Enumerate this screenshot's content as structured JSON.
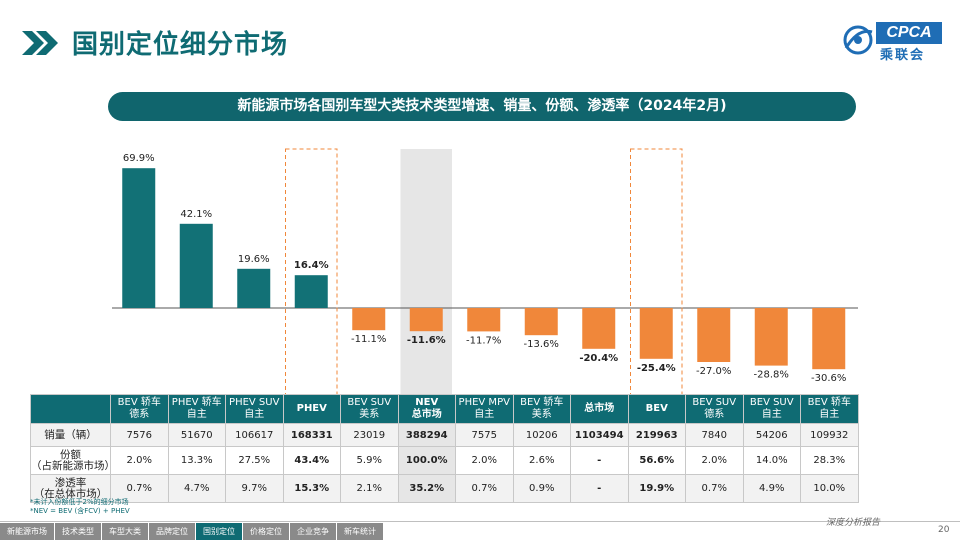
{
  "page": {
    "title": "国别定位细分市场",
    "page_number": "20",
    "tagline": "深度分析报告"
  },
  "logo": {
    "text": "CPCA",
    "subtext": "乘联会"
  },
  "colors": {
    "teal": "#127176",
    "orange": "#f0873a",
    "highlight_gray": "#e6e6e6",
    "dash_orange": "#f0873a"
  },
  "chart_data": {
    "type": "bar",
    "title": "新能源市场各国别车型大类技术类型增速、销量、份额、渗透率（2024年2月)",
    "categories": [
      "BEV 轿车\n德系",
      "PHEV 轿车\n自主",
      "PHEV SUV\n自主",
      "PHEV",
      "BEV SUV\n美系",
      "NEV\n总市场",
      "PHEV MPV\n自主",
      "BEV 轿车\n美系",
      "总市场",
      "BEV",
      "BEV SUV\n德系",
      "BEV SUV\n自主",
      "BEV 轿车\n自主"
    ],
    "values": [
      69.9,
      42.1,
      19.6,
      16.4,
      -11.1,
      -11.6,
      -11.7,
      -13.6,
      -20.4,
      -25.4,
      -27.0,
      -28.8,
      -30.6
    ],
    "labels": [
      "69.9%",
      "42.1%",
      "19.6%",
      "16.4%",
      "-11.1%",
      "-11.6%",
      "-11.7%",
      "-13.6%",
      "-20.4%",
      "-25.4%",
      "-27.0%",
      "-28.8%",
      "-30.6%"
    ],
    "bold_labels": [
      false,
      false,
      false,
      true,
      false,
      true,
      false,
      false,
      true,
      true,
      false,
      false,
      false
    ],
    "positive_color": "#127176",
    "negative_color": "#f0873a",
    "highlight_columns": {
      "dashed_box": [
        3,
        9
      ],
      "gray_fill": [
        5
      ]
    }
  },
  "table": {
    "headers": [
      "BEV 轿车\n德系",
      "PHEV 轿车\n自主",
      "PHEV SUV\n自主",
      "PHEV",
      "BEV SUV\n美系",
      "NEV\n总市场",
      "PHEV MPV\n自主",
      "BEV 轿车\n美系",
      "总市场",
      "BEV",
      "BEV SUV\n德系",
      "BEV SUV\n自主",
      "BEV 轿车\n自主"
    ],
    "rows": [
      {
        "label": "销量（辆）",
        "values": [
          "7576",
          "51670",
          "106617",
          "168331",
          "23019",
          "388294",
          "7575",
          "10206",
          "1103494",
          "219963",
          "7840",
          "54206",
          "109932"
        ]
      },
      {
        "label": "份额\n（占新能源市场）",
        "values": [
          "2.0%",
          "13.3%",
          "27.5%",
          "43.4%",
          "5.9%",
          "100.0%",
          "2.0%",
          "2.6%",
          "-",
          "56.6%",
          "2.0%",
          "14.0%",
          "28.3%"
        ]
      },
      {
        "label": "渗透率\n（在总体市场）",
        "values": [
          "0.7%",
          "4.7%",
          "9.7%",
          "15.3%",
          "2.1%",
          "35.2%",
          "0.7%",
          "0.9%",
          "-",
          "19.9%",
          "0.7%",
          "4.9%",
          "10.0%"
        ]
      }
    ],
    "bold_columns": [
      3,
      5,
      8,
      9
    ]
  },
  "footnotes": [
    "*未计入份额低于2%的细分市场",
    "*NEV = BEV (含FCV) + PHEV"
  ],
  "nav": [
    "新能源市场",
    "技术类型",
    "车型大类",
    "品牌定位",
    "国别定位",
    "价格定位",
    "企业竞争",
    "新车统计"
  ],
  "nav_active": 4
}
